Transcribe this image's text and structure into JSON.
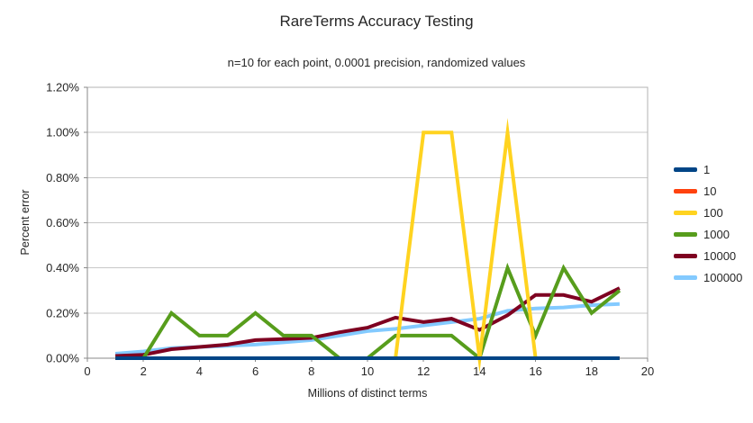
{
  "chart_data": {
    "type": "line",
    "title": "RareTerms Accuracy Testing",
    "subtitle": "n=10 for each point, 0.0001 precision, randomized values",
    "xlabel": "Millions of distinct terms",
    "ylabel": "Percent error",
    "xlim": [
      0,
      20
    ],
    "ylim_percent": [
      0,
      1.2
    ],
    "grid": "horizontal",
    "legend_position": "right",
    "x_ticks": [
      0,
      2,
      4,
      6,
      8,
      10,
      12,
      14,
      16,
      18,
      20
    ],
    "y_ticks": [
      {
        "value": 0.0,
        "label": "0.00%"
      },
      {
        "value": 0.2,
        "label": "0.20%"
      },
      {
        "value": 0.4,
        "label": "0.40%"
      },
      {
        "value": 0.6,
        "label": "0.60%"
      },
      {
        "value": 0.8,
        "label": "0.80%"
      },
      {
        "value": 1.0,
        "label": "1.00%"
      },
      {
        "value": 1.2,
        "label": "1.20%"
      }
    ],
    "x": [
      1,
      2,
      3,
      4,
      5,
      6,
      7,
      8,
      9,
      10,
      11,
      12,
      13,
      14,
      15,
      16,
      17,
      18,
      19
    ],
    "series": [
      {
        "name": "1",
        "color": "#004586",
        "values_percent": [
          0,
          0,
          0,
          0,
          0,
          0,
          0,
          0,
          0,
          0,
          0,
          0,
          0,
          0,
          0,
          0,
          0,
          0,
          0
        ]
      },
      {
        "name": "10",
        "color": "#FF420E",
        "values_percent": [
          0,
          0,
          0,
          0,
          0,
          0,
          0,
          0,
          0,
          0,
          0,
          0,
          0,
          0,
          0,
          0,
          0,
          0,
          0
        ]
      },
      {
        "name": "100",
        "color": "#FFD320",
        "values_percent": [
          0,
          0,
          0,
          0,
          0,
          0,
          0,
          0,
          0,
          0,
          0,
          1.0,
          1.0,
          0,
          1.0,
          0,
          0,
          0,
          0
        ]
      },
      {
        "name": "1000",
        "color": "#579D1C",
        "values_percent": [
          0,
          0,
          0.2,
          0.1,
          0.1,
          0.2,
          0.1,
          0.1,
          0,
          0,
          0.1,
          0.1,
          0.1,
          0,
          0.4,
          0.1,
          0.4,
          0.2,
          0.3
        ]
      },
      {
        "name": "10000",
        "color": "#7E0021",
        "values_percent": [
          0.01,
          0.015,
          0.04,
          0.05,
          0.06,
          0.08,
          0.085,
          0.09,
          0.115,
          0.135,
          0.18,
          0.16,
          0.175,
          0.125,
          0.19,
          0.28,
          0.28,
          0.25,
          0.31
        ]
      },
      {
        "name": "100000",
        "color": "#83CAFF",
        "values_percent": [
          0.02,
          0.03,
          0.045,
          0.05,
          0.055,
          0.06,
          0.07,
          0.08,
          0.1,
          0.12,
          0.13,
          0.145,
          0.16,
          0.175,
          0.21,
          0.22,
          0.225,
          0.235,
          0.24
        ]
      }
    ],
    "style_colors": {
      "gridline": "#c8c8c8",
      "plot_border": "#b3b3b3",
      "axis": "#8a8a8a",
      "text": "#262626"
    }
  }
}
